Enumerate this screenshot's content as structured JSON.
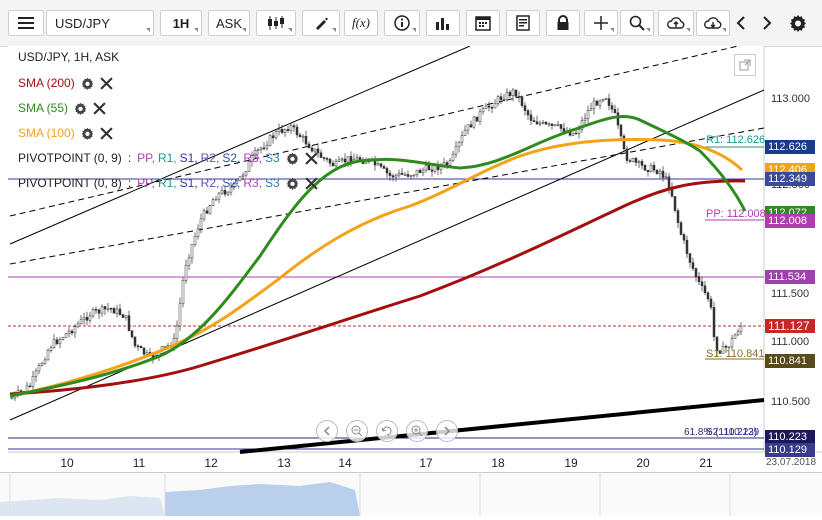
{
  "toolbar": {
    "symbol": "USD/JPY",
    "timeframe": "1H",
    "price_type": "ASK"
  },
  "legend": {
    "title": "USD/JPY, 1H, ASK",
    "sma200": "SMA (200)",
    "sma55": "SMA (55)",
    "sma100": "SMA (100)",
    "pivot1_prefix": "PIVOTPOINT (0, 9)",
    "pivot2_prefix": "PIVOTPOINT (0, 8)",
    "pivot_sep": " : ",
    "pivot_items": [
      "PP,",
      "R1,",
      "S1,",
      "R2,",
      "S2,",
      "R3,",
      "S3"
    ]
  },
  "price_axis": {
    "ticks": [
      "113.000",
      "112.500",
      "111.500",
      "111.000",
      "110.500"
    ],
    "tags": [
      "112.626",
      "112.406",
      "112.349",
      "112.072",
      "112.008",
      "111.534",
      "111.127",
      "110.841",
      "110.223",
      "110.129"
    ]
  },
  "annotations": {
    "r1": "R1: 112.626",
    "pp": "PP: 112.008",
    "s1": "S1: 110.841",
    "fib": "61.8% (110.223)",
    "s2": "S2: 110.129"
  },
  "x_axis": {
    "labels": [
      "10",
      "11",
      "12",
      "13",
      "14",
      "17",
      "18",
      "19",
      "20",
      "21"
    ],
    "date": "23.07.2018"
  },
  "colors": {
    "sma200": "#a30f0f",
    "sma55": "#2e8b1e",
    "sma100": "#f5a21b",
    "pivot_pp": "#b03cb0",
    "pivot_r1": "#1a9a8a",
    "pivot_s1": "#3333aa",
    "pivot_r2": "#6b4ec2",
    "pivot_s2": "#2f4f9f",
    "pivot_r3": "#b040c0",
    "pivot_s3": "#2a7fb5"
  }
}
